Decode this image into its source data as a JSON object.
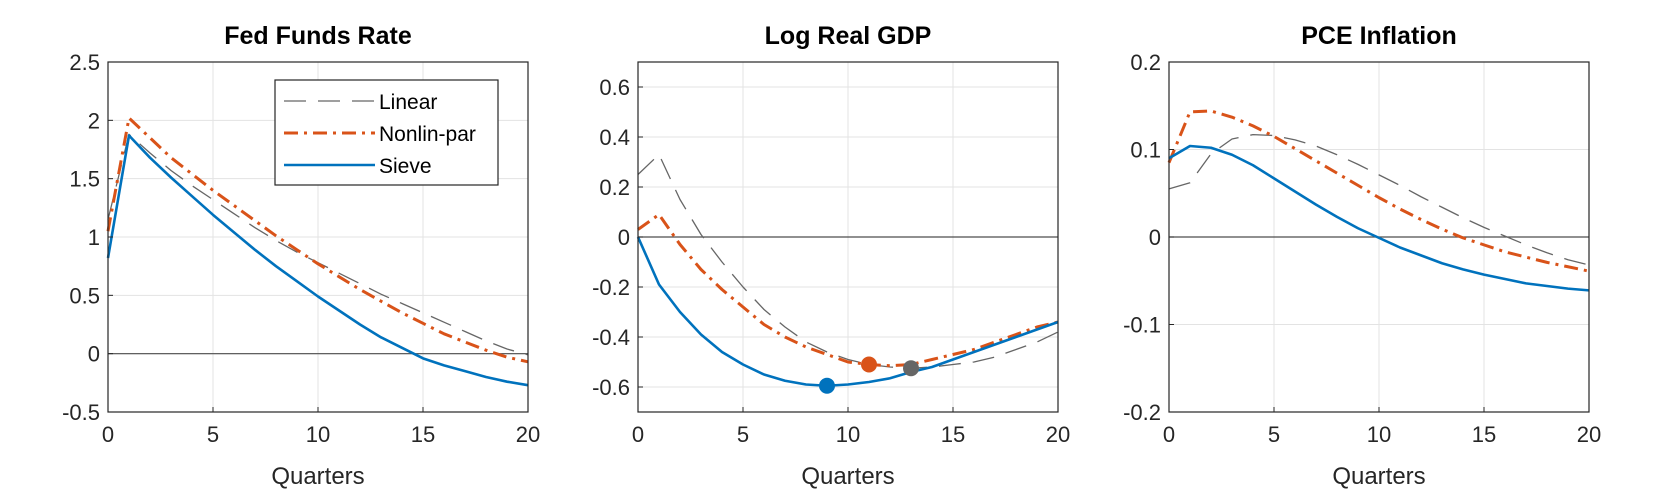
{
  "chart_data": [
    {
      "type": "line",
      "title": "Fed Funds Rate",
      "xlabel": "Quarters",
      "ylabel": "",
      "xlim": [
        0,
        20
      ],
      "ylim": [
        -0.5,
        2.5
      ],
      "xticks": [
        0,
        5,
        10,
        15,
        20
      ],
      "yticks": [
        -0.5,
        0,
        0.5,
        1,
        1.5,
        2,
        2.5
      ],
      "xtick_labels": [
        "0",
        "5",
        "10",
        "15",
        "20"
      ],
      "ytick_labels": [
        "-0.5",
        "0",
        "0.5",
        "1",
        "1.5",
        "2",
        "2.5"
      ],
      "grid": true,
      "legend": {
        "placement": "top-right",
        "entries": [
          "Linear",
          "Nonlin-par",
          "Sieve"
        ]
      },
      "series": [
        {
          "name": "Linear",
          "color": "#666666",
          "style": "dashed",
          "x": [
            0,
            1,
            2,
            3,
            4,
            5,
            6,
            7,
            8,
            9,
            10,
            11,
            12,
            13,
            14,
            15,
            16,
            17,
            18,
            19,
            20
          ],
          "values": [
            1.15,
            1.88,
            1.72,
            1.57,
            1.44,
            1.32,
            1.2,
            1.08,
            0.97,
            0.87,
            0.78,
            0.69,
            0.6,
            0.51,
            0.43,
            0.35,
            0.27,
            0.19,
            0.11,
            0.04,
            -0.01
          ]
        },
        {
          "name": "Nonlin-par",
          "color": "#D95319",
          "style": "dashdot",
          "x": [
            0,
            1,
            2,
            3,
            4,
            5,
            6,
            7,
            8,
            9,
            10,
            11,
            12,
            13,
            14,
            15,
            16,
            17,
            18,
            19,
            20
          ],
          "values": [
            1.05,
            2.02,
            1.85,
            1.68,
            1.54,
            1.4,
            1.27,
            1.14,
            1.01,
            0.89,
            0.77,
            0.66,
            0.55,
            0.45,
            0.35,
            0.26,
            0.17,
            0.1,
            0.03,
            -0.03,
            -0.07
          ]
        },
        {
          "name": "Sieve",
          "color": "#0072BD",
          "style": "solid",
          "x": [
            0,
            1,
            2,
            3,
            4,
            5,
            6,
            7,
            8,
            9,
            10,
            11,
            12,
            13,
            14,
            15,
            16,
            17,
            18,
            19,
            20
          ],
          "values": [
            0.82,
            1.87,
            1.68,
            1.51,
            1.35,
            1.19,
            1.04,
            0.89,
            0.75,
            0.62,
            0.49,
            0.37,
            0.25,
            0.14,
            0.05,
            -0.04,
            -0.1,
            -0.15,
            -0.2,
            -0.24,
            -0.27
          ]
        }
      ],
      "markers": []
    },
    {
      "type": "line",
      "title": "Log Real GDP",
      "xlabel": "Quarters",
      "ylabel": "",
      "xlim": [
        0,
        20
      ],
      "ylim": [
        -0.7,
        0.7
      ],
      "xticks": [
        0,
        5,
        10,
        15,
        20
      ],
      "yticks": [
        -0.6,
        -0.4,
        -0.2,
        0,
        0.2,
        0.4,
        0.6
      ],
      "xtick_labels": [
        "0",
        "5",
        "10",
        "15",
        "20"
      ],
      "ytick_labels": [
        "-0.6",
        "-0.4",
        "-0.2",
        "0",
        "0.2",
        "0.4",
        "0.6"
      ],
      "grid": true,
      "legend": null,
      "series": [
        {
          "name": "Linear",
          "color": "#666666",
          "style": "dashed",
          "x": [
            0,
            1,
            2,
            3,
            4,
            5,
            6,
            7,
            8,
            9,
            10,
            11,
            12,
            13,
            14,
            15,
            16,
            17,
            18,
            19,
            20
          ],
          "values": [
            0.25,
            0.33,
            0.15,
            0.01,
            -0.1,
            -0.2,
            -0.29,
            -0.36,
            -0.42,
            -0.46,
            -0.49,
            -0.51,
            -0.52,
            -0.525,
            -0.52,
            -0.51,
            -0.5,
            -0.48,
            -0.45,
            -0.42,
            -0.38
          ]
        },
        {
          "name": "Nonlin-par",
          "color": "#D95319",
          "style": "dashdot",
          "x": [
            0,
            1,
            2,
            3,
            4,
            5,
            6,
            7,
            8,
            9,
            10,
            11,
            12,
            13,
            14,
            15,
            16,
            17,
            18,
            19,
            20
          ],
          "values": [
            0.03,
            0.09,
            -0.03,
            -0.13,
            -0.21,
            -0.28,
            -0.35,
            -0.4,
            -0.44,
            -0.47,
            -0.5,
            -0.51,
            -0.515,
            -0.51,
            -0.49,
            -0.47,
            -0.45,
            -0.42,
            -0.39,
            -0.36,
            -0.34
          ]
        },
        {
          "name": "Sieve",
          "color": "#0072BD",
          "style": "solid",
          "x": [
            0,
            1,
            2,
            3,
            4,
            5,
            6,
            7,
            8,
            9,
            10,
            11,
            12,
            13,
            14,
            15,
            16,
            17,
            18,
            19,
            20
          ],
          "values": [
            0.0,
            -0.19,
            -0.3,
            -0.39,
            -0.46,
            -0.51,
            -0.55,
            -0.575,
            -0.59,
            -0.595,
            -0.59,
            -0.58,
            -0.565,
            -0.54,
            -0.52,
            -0.49,
            -0.46,
            -0.43,
            -0.4,
            -0.37,
            -0.34
          ]
        }
      ],
      "markers": [
        {
          "series": "Sieve",
          "x": 9,
          "y": -0.595,
          "color": "#0072BD"
        },
        {
          "series": "Nonlin-par",
          "x": 11,
          "y": -0.51,
          "color": "#D95319"
        },
        {
          "series": "Linear",
          "x": 13,
          "y": -0.525,
          "color": "#666666"
        }
      ]
    },
    {
      "type": "line",
      "title": "PCE Inflation",
      "xlabel": "Quarters",
      "ylabel": "",
      "xlim": [
        0,
        20
      ],
      "ylim": [
        -0.2,
        0.2
      ],
      "xticks": [
        0,
        5,
        10,
        15,
        20
      ],
      "yticks": [
        -0.2,
        -0.1,
        0,
        0.1,
        0.2
      ],
      "xtick_labels": [
        "0",
        "5",
        "10",
        "15",
        "20"
      ],
      "ytick_labels": [
        "-0.2",
        "-0.1",
        "0",
        "0.1",
        "0.2"
      ],
      "grid": true,
      "legend": null,
      "series": [
        {
          "name": "Linear",
          "color": "#666666",
          "style": "dashed",
          "x": [
            0,
            1,
            2,
            3,
            4,
            5,
            6,
            7,
            8,
            9,
            10,
            11,
            12,
            13,
            14,
            15,
            16,
            17,
            18,
            19,
            20
          ],
          "values": [
            0.055,
            0.062,
            0.095,
            0.112,
            0.117,
            0.116,
            0.111,
            0.104,
            0.094,
            0.083,
            0.071,
            0.059,
            0.046,
            0.034,
            0.022,
            0.011,
            0.001,
            -0.009,
            -0.018,
            -0.026,
            -0.032
          ]
        },
        {
          "name": "Nonlin-par",
          "color": "#D95319",
          "style": "dashdot",
          "x": [
            0,
            1,
            2,
            3,
            4,
            5,
            6,
            7,
            8,
            9,
            10,
            11,
            12,
            13,
            14,
            15,
            16,
            17,
            18,
            19,
            20
          ],
          "values": [
            0.085,
            0.143,
            0.144,
            0.137,
            0.127,
            0.115,
            0.101,
            0.087,
            0.073,
            0.059,
            0.045,
            0.032,
            0.02,
            0.009,
            -0.001,
            -0.009,
            -0.017,
            -0.023,
            -0.029,
            -0.034,
            -0.039
          ]
        },
        {
          "name": "Sieve",
          "color": "#0072BD",
          "style": "solid",
          "x": [
            0,
            1,
            2,
            3,
            4,
            5,
            6,
            7,
            8,
            9,
            10,
            11,
            12,
            13,
            14,
            15,
            16,
            17,
            18,
            19,
            20
          ],
          "values": [
            0.09,
            0.104,
            0.102,
            0.094,
            0.082,
            0.067,
            0.052,
            0.037,
            0.023,
            0.01,
            -0.001,
            -0.012,
            -0.021,
            -0.03,
            -0.037,
            -0.043,
            -0.048,
            -0.053,
            -0.056,
            -0.059,
            -0.061
          ]
        }
      ],
      "markers": []
    }
  ]
}
